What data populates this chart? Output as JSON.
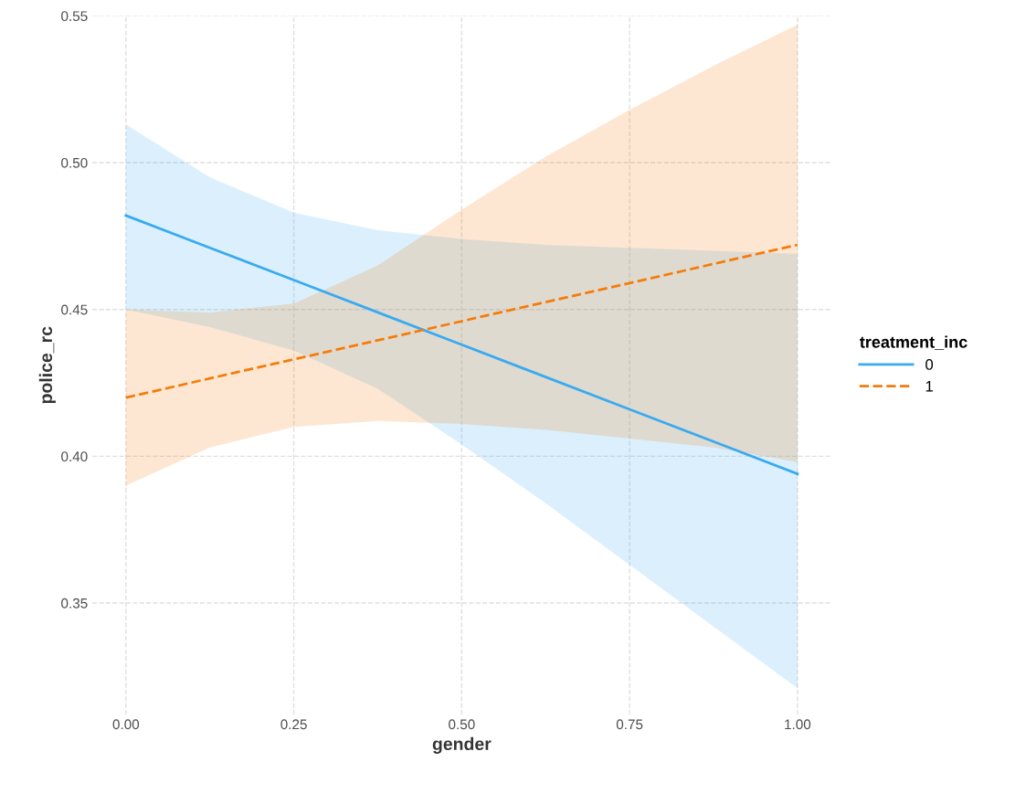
{
  "chart_data": {
    "type": "line",
    "xlabel": "gender",
    "ylabel": "police_rc",
    "legend_title": "treatment_inc",
    "legend": "right",
    "grid": true,
    "marker": "none",
    "x": [
      0,
      0.125,
      0.25,
      0.375,
      0.5,
      0.625,
      0.75,
      0.875,
      1
    ],
    "xlim": [
      -0.05,
      1.05
    ],
    "xticks": [
      {
        "value": 0,
        "label": "0.00"
      },
      {
        "value": 0.25,
        "label": "0.25"
      },
      {
        "value": 0.5,
        "label": "0.50"
      },
      {
        "value": 0.75,
        "label": "0.75"
      },
      {
        "value": 1,
        "label": "1.00"
      }
    ],
    "ylim": [
      0.312,
      0.55
    ],
    "yticks": [
      {
        "value": 0.35,
        "label": "0.35"
      },
      {
        "value": 0.4,
        "label": "0.40"
      },
      {
        "value": 0.45,
        "label": "0.45"
      },
      {
        "value": 0.5,
        "label": "0.50"
      },
      {
        "value": 0.55,
        "label": "0.55"
      }
    ],
    "series": [
      {
        "name": "0",
        "color": "#3aaaf0",
        "line_style": "solid",
        "values": [
          0.482,
          0.471,
          0.46,
          0.449,
          0.438,
          0.427,
          0.416,
          0.405,
          0.394
        ],
        "upper": [
          0.513,
          0.495,
          0.483,
          0.477,
          0.474,
          0.472,
          0.471,
          0.47,
          0.469
        ],
        "lower": [
          0.45,
          0.444,
          0.436,
          0.423,
          0.404,
          0.384,
          0.363,
          0.342,
          0.321
        ]
      },
      {
        "name": "1",
        "color": "#f57c0a",
        "line_style": "dashed",
        "values": [
          0.42,
          0.4265,
          0.433,
          0.4395,
          0.446,
          0.4525,
          0.459,
          0.4655,
          0.472
        ],
        "upper": [
          0.45,
          0.449,
          0.452,
          0.465,
          0.484,
          0.502,
          0.518,
          0.533,
          0.547
        ],
        "lower": [
          0.39,
          0.403,
          0.41,
          0.412,
          0.411,
          0.409,
          0.406,
          0.403,
          0.398
        ]
      }
    ]
  }
}
